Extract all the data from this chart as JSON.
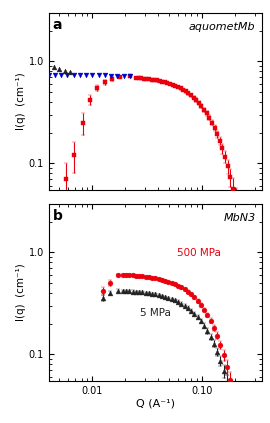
{
  "panel_a_label": "a",
  "panel_b_label": "b",
  "panel_a_title": "aquometMb",
  "panel_b_title": "MbN3",
  "xlabel": "Q (A⁻¹)",
  "ylabel": "I(q)  (cm⁻¹)",
  "xlim": [
    0.004,
    0.35
  ],
  "ylim_a": [
    0.055,
    3.0
  ],
  "ylim_b": [
    0.055,
    3.0
  ],
  "annotation_500MPa": "500 MPa",
  "annotation_5MPa": "5 MPa",
  "color_red": "#e8000d",
  "color_blue": "#0000cc",
  "color_black": "#222222"
}
